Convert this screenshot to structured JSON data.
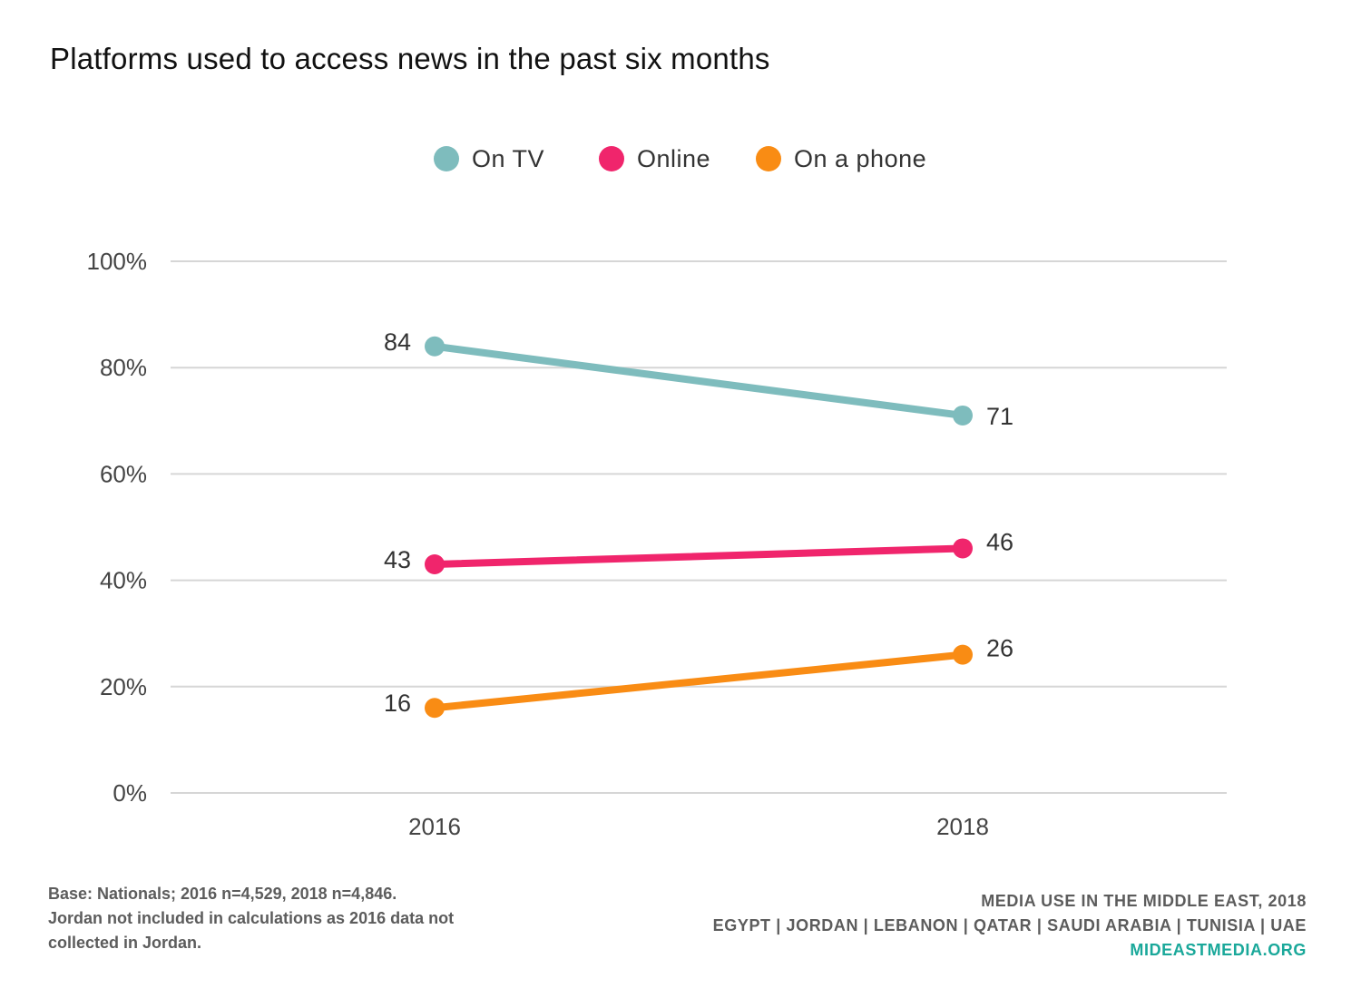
{
  "chart_data": {
    "type": "line",
    "title": "Platforms used to access news in the past six months",
    "x": [
      "2016",
      "2018"
    ],
    "series": [
      {
        "name": "On TV",
        "values": [
          84,
          71
        ],
        "labels": [
          "84",
          "71"
        ],
        "color": "#7ebcbd"
      },
      {
        "name": "Online",
        "values": [
          43,
          46
        ],
        "labels": [
          "43",
          "46"
        ],
        "color": "#f0256c"
      },
      {
        "name": "On a phone",
        "values": [
          16,
          26
        ],
        "labels": [
          "16",
          "26"
        ],
        "color": "#f98c14"
      }
    ],
    "yticks": [
      "0%",
      "20%",
      "40%",
      "60%",
      "80%",
      "100%"
    ],
    "ylim": [
      0,
      100
    ],
    "grid": true,
    "legend_position": "top-center",
    "xlabel": "",
    "ylabel": ""
  },
  "footer": {
    "base_lines": [
      "Base: Nationals; 2016 n=4,529, 2018 n=4,846.",
      "Jordan not included in calculations as 2016 data not",
      "collected in Jordan."
    ],
    "source_line": "MEDIA USE IN THE MIDDLE EAST, 2018",
    "countries_line": "EGYPT | JORDAN | LEBANON | QATAR | SAUDI ARABIA | TUNISIA | UAE",
    "website": "MIDEASTMEDIA.ORG",
    "website_color": "#1aa89a"
  }
}
